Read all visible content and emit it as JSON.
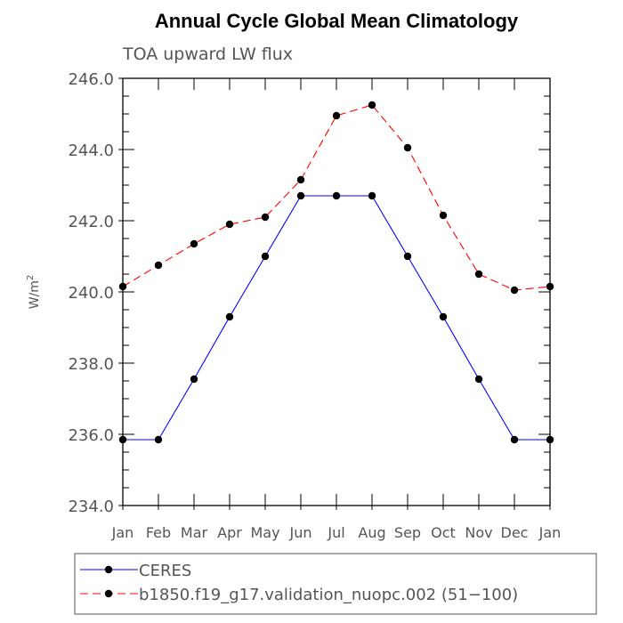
{
  "chart_data": {
    "type": "line",
    "title": "Annual Cycle Global Mean Climatology",
    "subtitle": "TOA upward LW flux",
    "ylabel": "W/m",
    "ylabel_sup": "2",
    "categories": [
      "Jan",
      "Feb",
      "Mar",
      "Apr",
      "May",
      "Jun",
      "Jul",
      "Aug",
      "Sep",
      "Oct",
      "Nov",
      "Dec",
      "Jan"
    ],
    "ylim": [
      234.0,
      246.0
    ],
    "yticks": [
      234.0,
      236.0,
      238.0,
      240.0,
      242.0,
      244.0,
      246.0
    ],
    "ytick_labels": [
      "234.0",
      "236.0",
      "238.0",
      "240.0",
      "242.0",
      "244.0",
      "246.0"
    ],
    "grid": false,
    "legend_position": "bottom",
    "series": [
      {
        "name": "CERES",
        "color": "#0000ff",
        "line_style": "solid",
        "values": [
          235.85,
          235.85,
          237.55,
          239.3,
          241.0,
          242.7,
          242.7,
          242.7,
          241.0,
          239.3,
          237.55,
          235.85,
          235.85
        ]
      },
      {
        "name": "b1850.f19_g17.validation_nuopc.002 (51−100)",
        "color": "#ff0000",
        "line_style": "dashed",
        "values": [
          240.15,
          240.75,
          241.35,
          241.9,
          242.1,
          243.15,
          244.95,
          245.25,
          244.05,
          242.15,
          240.5,
          240.05,
          240.15
        ]
      }
    ]
  }
}
